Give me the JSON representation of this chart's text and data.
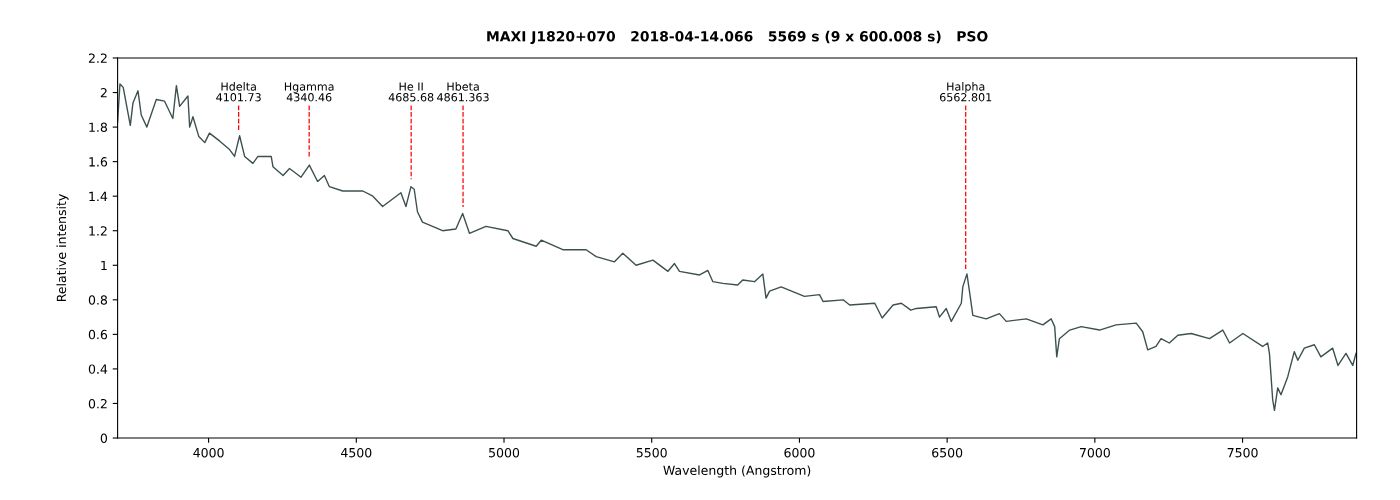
{
  "chart_data": {
    "type": "line",
    "title": "MAXI J1820+070   2018-04-14.066   5569 s (9 x 600.008 s)   PSO",
    "xlabel": "Wavelength (Angstrom)",
    "ylabel": "Relative intensity",
    "xlim": [
      3692,
      7886
    ],
    "xticks": [
      4000,
      4500,
      5000,
      5500,
      6000,
      6500,
      7000,
      7500
    ],
    "ylim": [
      0,
      2.2
    ],
    "yticks": [
      0,
      0.2,
      0.4,
      0.6,
      0.8,
      1,
      1.2,
      1.4,
      1.6,
      1.8,
      2,
      2.2
    ],
    "grid": false,
    "marker": "none",
    "line_style": "solid",
    "series": [
      {
        "color": "#3d5050",
        "x": [
          3692,
          3700,
          3711,
          3735,
          3744,
          3761,
          3772,
          3791,
          3823,
          3851,
          3879,
          3891,
          3902,
          3930,
          3936,
          3947,
          3967,
          3987,
          4003,
          4037,
          4071,
          4088,
          4105,
          4122,
          4150,
          4167,
          4212,
          4218,
          4252,
          4274,
          4313,
          4341,
          4369,
          4392,
          4409,
          4454,
          4522,
          4556,
          4589,
          4651,
          4668,
          4685,
          4696,
          4707,
          4724,
          4792,
          4837,
          4860,
          4883,
          4939,
          5013,
          5030,
          5109,
          5126,
          5199,
          5278,
          5312,
          5374,
          5402,
          5447,
          5504,
          5555,
          5577,
          5594,
          5662,
          5690,
          5707,
          5741,
          5791,
          5808,
          5848,
          5876,
          5887,
          5899,
          5938,
          6017,
          6068,
          6080,
          6148,
          6170,
          6255,
          6280,
          6317,
          6345,
          6377,
          6396,
          6463,
          6474,
          6497,
          6514,
          6548,
          6553,
          6567,
          6578,
          6587,
          6632,
          6677,
          6700,
          6768,
          6824,
          6852,
          6864,
          6871,
          6880,
          6915,
          6954,
          7016,
          7072,
          7140,
          7162,
          7179,
          7207,
          7224,
          7252,
          7281,
          7326,
          7388,
          7433,
          7456,
          7501,
          7568,
          7585,
          7591,
          7602,
          7608,
          7619,
          7630,
          7653,
          7675,
          7687,
          7709,
          7743,
          7765,
          7805,
          7823,
          7850,
          7873,
          7884
        ],
        "values": [
          1.83,
          2.05,
          2.03,
          1.81,
          1.94,
          2.01,
          1.87,
          1.8,
          1.96,
          1.95,
          1.85,
          2.04,
          1.92,
          1.98,
          1.8,
          1.86,
          1.745,
          1.71,
          1.765,
          1.72,
          1.67,
          1.63,
          1.75,
          1.63,
          1.59,
          1.63,
          1.63,
          1.57,
          1.52,
          1.56,
          1.51,
          1.58,
          1.485,
          1.52,
          1.455,
          1.43,
          1.43,
          1.4,
          1.34,
          1.42,
          1.34,
          1.455,
          1.44,
          1.31,
          1.25,
          1.2,
          1.21,
          1.3,
          1.185,
          1.225,
          1.2,
          1.155,
          1.11,
          1.145,
          1.09,
          1.09,
          1.05,
          1.02,
          1.07,
          1.0,
          1.03,
          0.965,
          1.01,
          0.965,
          0.944,
          0.97,
          0.905,
          0.895,
          0.886,
          0.915,
          0.905,
          0.95,
          0.81,
          0.85,
          0.875,
          0.82,
          0.83,
          0.79,
          0.8,
          0.77,
          0.78,
          0.695,
          0.77,
          0.78,
          0.74,
          0.75,
          0.76,
          0.7,
          0.75,
          0.675,
          0.78,
          0.875,
          0.95,
          0.82,
          0.71,
          0.69,
          0.72,
          0.675,
          0.69,
          0.655,
          0.69,
          0.645,
          0.47,
          0.575,
          0.625,
          0.645,
          0.625,
          0.655,
          0.665,
          0.615,
          0.51,
          0.53,
          0.575,
          0.55,
          0.595,
          0.605,
          0.575,
          0.625,
          0.55,
          0.605,
          0.53,
          0.55,
          0.49,
          0.22,
          0.16,
          0.29,
          0.25,
          0.355,
          0.5,
          0.45,
          0.52,
          0.54,
          0.47,
          0.52,
          0.42,
          0.49,
          0.42,
          0.49
        ]
      }
    ],
    "ref_lines": [
      {
        "axis": "x",
        "value": 4101.73,
        "label": "Hdelta\n4101.73",
        "color": "#ff0000",
        "line_style": "dashed"
      },
      {
        "axis": "x",
        "value": 4340.46,
        "label": "Hgamma\n4340.46",
        "color": "#ff0000",
        "line_style": "dashed"
      },
      {
        "axis": "x",
        "value": 4685.68,
        "label": "He II\n4685.68",
        "color": "#ff0000",
        "line_style": "dashed"
      },
      {
        "axis": "x",
        "value": 4861.363,
        "label": "Hbeta\n4861.363",
        "color": "#ff0000",
        "line_style": "dashed"
      },
      {
        "axis": "x",
        "value": 6562.801,
        "label": "Halpha\n6562.801",
        "color": "#ff0000",
        "line_style": "dashed"
      }
    ]
  }
}
